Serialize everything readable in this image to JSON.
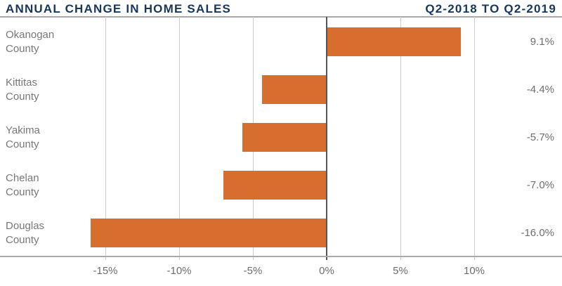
{
  "header": {
    "title": "ANNUAL CHANGE IN HOME SALES",
    "period": "Q2-2018 TO Q2-2019"
  },
  "chart_data": {
    "type": "bar",
    "orientation": "horizontal",
    "title": "ANNUAL CHANGE IN HOME SALES",
    "subtitle": "Q2-2018 TO Q2-2019",
    "categories": [
      "Okanogan County",
      "Kittitas County",
      "Yakima County",
      "Chelan County",
      "Douglas County"
    ],
    "values": [
      9.1,
      -4.4,
      -5.7,
      -7.0,
      -16.0
    ],
    "rows": [
      {
        "label_line1": "Okanogan",
        "label_line2": "County",
        "value": 9.1,
        "value_label": "9.1%"
      },
      {
        "label_line1": "Kittitas",
        "label_line2": "County",
        "value": -4.4,
        "value_label": "-4.4%"
      },
      {
        "label_line1": "Yakima",
        "label_line2": "County",
        "value": -5.7,
        "value_label": "-5.7%"
      },
      {
        "label_line1": "Chelan",
        "label_line2": "County",
        "value": -7.0,
        "value_label": "-7.0%"
      },
      {
        "label_line1": "Douglas",
        "label_line2": "County",
        "value": -16.0,
        "value_label": "-16.0%"
      }
    ],
    "x_ticks": [
      {
        "value": -15,
        "label": "-15%"
      },
      {
        "value": -10,
        "label": "-10%"
      },
      {
        "value": -5,
        "label": "-5%"
      },
      {
        "value": 0,
        "label": "0%"
      },
      {
        "value": 5,
        "label": "5%"
      },
      {
        "value": 10,
        "label": "10%"
      }
    ],
    "xlabel": "",
    "ylabel": "",
    "xlim": [
      -22,
      16
    ],
    "grid": "vertical-only",
    "legend": "none",
    "colors": {
      "bar": "#D76E2D",
      "heading": "#17375F",
      "category_label": "#77787B",
      "value_label": "#6D6E71",
      "tick_label": "#6D6E71",
      "gridline": "#CBCCCE",
      "zero_line": "#55565A",
      "axis_line": "#A7A9AC",
      "background": "#FFFFFF"
    }
  }
}
